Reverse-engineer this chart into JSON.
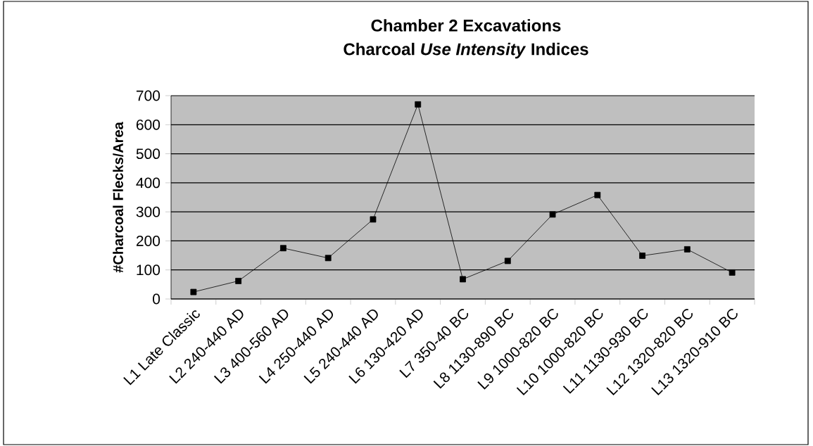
{
  "chart_data": {
    "type": "line",
    "title": "Chamber 2 Excavations",
    "subtitle": "Charcoal *Use Intensity* Indices",
    "ylabel": "#Charcoal Flecks/Area",
    "categories": [
      "L1 Late Classic",
      "L2 240-440 AD",
      "L3 400-560 AD",
      "L4 250-440 AD",
      "L5 240-440 AD",
      "L6 130-420 AD",
      "L7 350-40 BC",
      "L8 1130-890 BC",
      "L9 1000-820 BC",
      "L10 1000-820 BC",
      "L11 1130-930 BC",
      "L12 1320-820 BC",
      "L13 1320-910 BC"
    ],
    "values": [
      24,
      62,
      175,
      141,
      274,
      670,
      68,
      131,
      291,
      358,
      149,
      171,
      91
    ],
    "color": "#000000",
    "ylim": [
      0,
      700
    ],
    "yticks": [
      0,
      100,
      200,
      300,
      400,
      500,
      600,
      700
    ],
    "grid": "y",
    "marker": "square",
    "line_style": "solid"
  }
}
